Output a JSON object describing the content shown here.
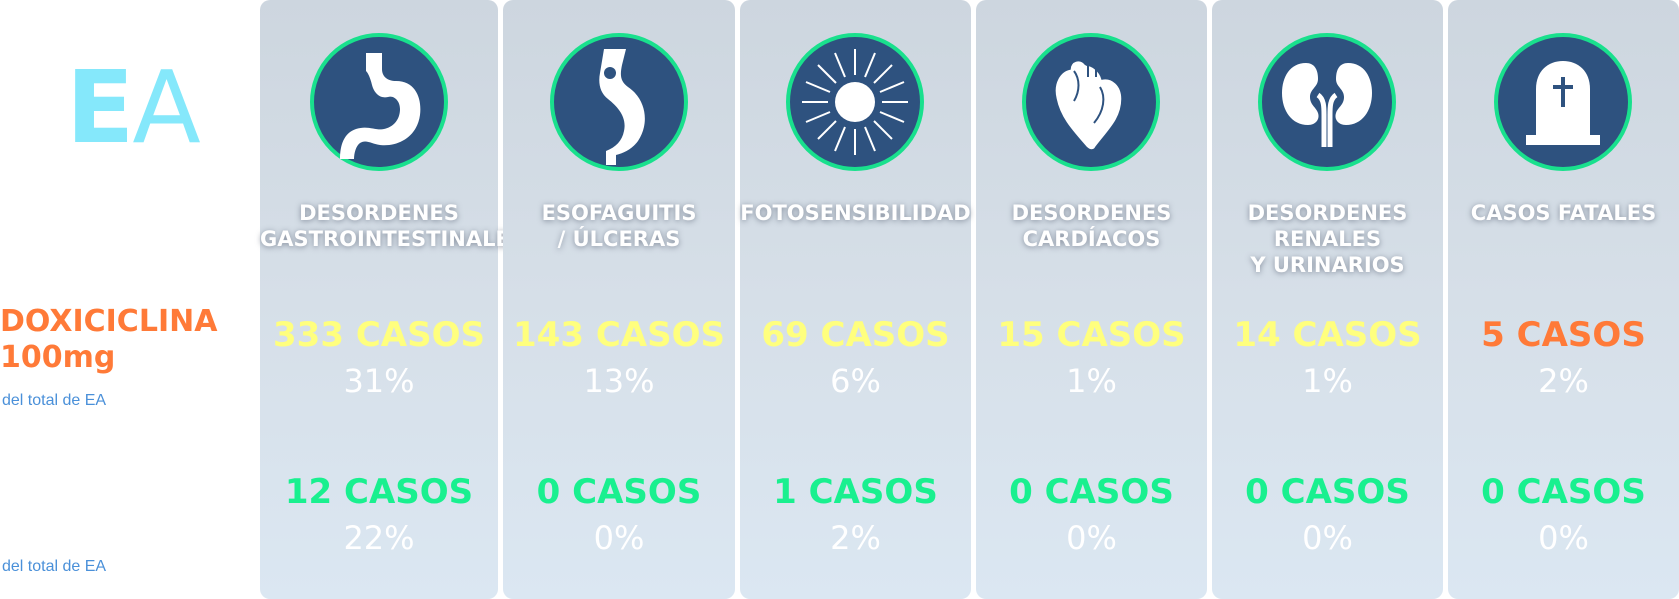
{
  "logo": {
    "e": "E",
    "a": "A"
  },
  "drug": {
    "name": "DOXICICLINA",
    "dose": "100mg"
  },
  "note1": "del total de EA",
  "note2": "del total de EA",
  "colors": {
    "accent_orange": "#ff7a38",
    "yellow": "#ffff7e",
    "green": "#19f08f",
    "icon_bg": "#2e527f"
  },
  "columns": [
    {
      "title": "DESORDENES\nGASTROINTESTINALES",
      "icon": "stomach-icon",
      "cases1": "333 CASOS",
      "pct1": "31%",
      "cases2": "12 CASOS",
      "pct2": "22%"
    },
    {
      "title": "ESOFAGUITIS\n/ ÚLCERAS",
      "icon": "esophagus-icon",
      "cases1": "143 CASOS",
      "pct1": "13%",
      "cases2": "0 CASOS",
      "pct2": "0%"
    },
    {
      "title": "FOTOSENSIBILIDAD",
      "icon": "sun-icon",
      "cases1": "69 CASOS",
      "pct1": "6%",
      "cases2": "1 CASOS",
      "pct2": "2%"
    },
    {
      "title": "DESORDENES\nCARDÍACOS",
      "icon": "heart-icon",
      "cases1": "15 CASOS",
      "pct1": "1%",
      "cases2": "0 CASOS",
      "pct2": "0%"
    },
    {
      "title": "DESORDENES\nRENALES\nY URINARIOS",
      "icon": "kidneys-icon",
      "cases1": "14 CASOS",
      "pct1": "1%",
      "cases2": "0 CASOS",
      "pct2": "0%"
    },
    {
      "title": "CASOS FATALES",
      "icon": "tombstone-icon",
      "cases1": "5 CASOS",
      "pct1": "2%",
      "cases2": "0 CASOS",
      "pct2": "0%"
    }
  ]
}
